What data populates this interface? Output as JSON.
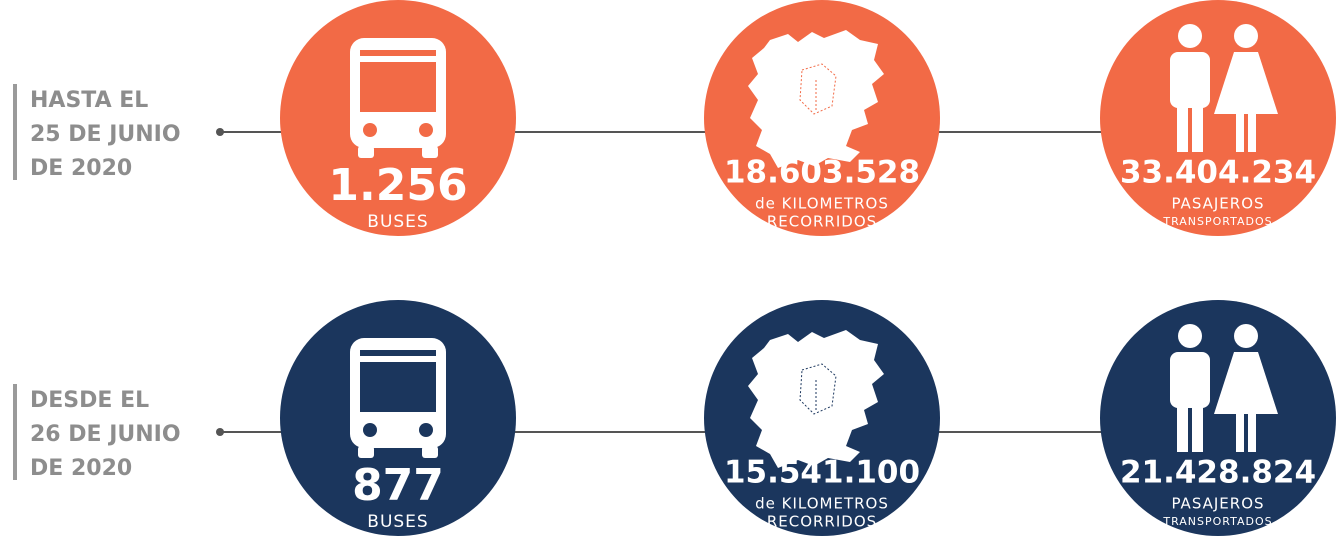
{
  "rows": [
    {
      "label_lines": [
        "HASTA EL",
        "25 DE JUNIO",
        "DE 2020"
      ],
      "color": "#f26a46",
      "items": [
        {
          "value": "1.256",
          "caption": [
            "BUSES"
          ]
        },
        {
          "value": "18.603.528",
          "caption": [
            "de KILOMETROS",
            "RECORRIDOS"
          ]
        },
        {
          "value": "33.404.234",
          "caption": [
            "PASAJEROS",
            "TRANSPORTADOS"
          ]
        }
      ]
    },
    {
      "label_lines": [
        "DESDE EL",
        "26 DE JUNIO",
        "DE 2020"
      ],
      "color": "#1b365d",
      "items": [
        {
          "value": "877",
          "caption": [
            "BUSES"
          ]
        },
        {
          "value": "15.541.100",
          "caption": [
            "de KILOMETROS",
            "RECORRIDOS"
          ]
        },
        {
          "value": "21.428.824",
          "caption": [
            "PASAJEROS",
            "TRANSPORTADOS"
          ]
        }
      ]
    }
  ]
}
